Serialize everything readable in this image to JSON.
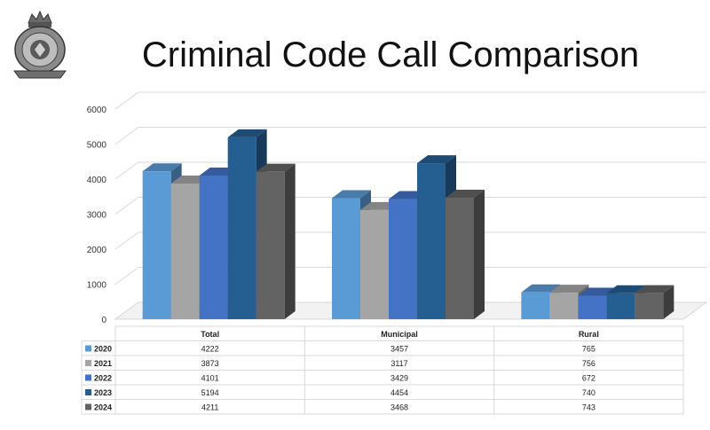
{
  "title": "Criminal Code Call Comparison",
  "logo": {
    "icon": "rcmp-crest-icon"
  },
  "chart_data": {
    "type": "bar",
    "title": "Criminal Code Call Comparison",
    "categories": [
      "Total",
      "Municipal",
      "Rural"
    ],
    "series": [
      {
        "name": "2020",
        "color": "#5b9bd5",
        "values": [
          4222,
          3457,
          765
        ]
      },
      {
        "name": "2021",
        "color": "#a5a5a5",
        "values": [
          3873,
          3117,
          756
        ]
      },
      {
        "name": "2022",
        "color": "#4472c4",
        "values": [
          4101,
          3429,
          672
        ]
      },
      {
        "name": "2023",
        "color": "#255e91",
        "values": [
          5194,
          4454,
          740
        ]
      },
      {
        "name": "2024",
        "color": "#636363",
        "values": [
          4211,
          3468,
          743
        ]
      }
    ],
    "ylim": [
      0,
      6000
    ],
    "yticks": [
      0,
      1000,
      2000,
      3000,
      4000,
      5000,
      6000
    ],
    "grid": true,
    "style": "3d-clustered-column",
    "data_table": true
  }
}
